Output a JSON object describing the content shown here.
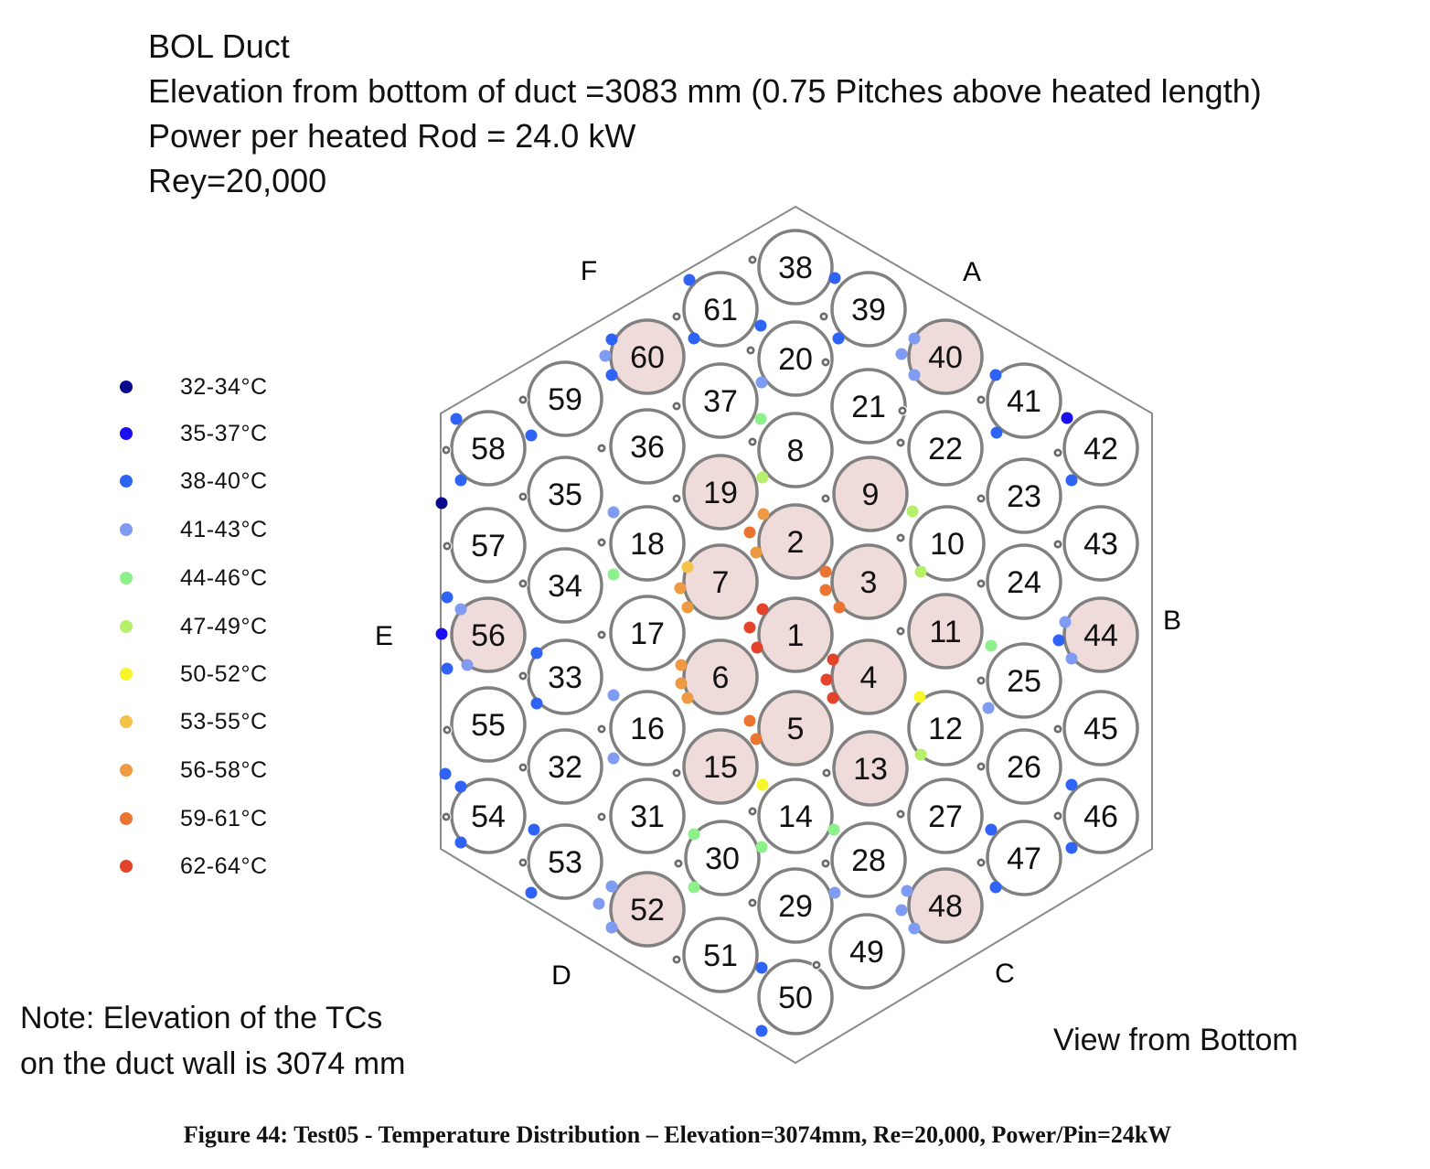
{
  "header": {
    "line1": "BOL Duct",
    "line2": "Elevation from bottom of duct =3083 mm (0.75 Pitches above heated length)",
    "line3": "Power per heated Rod = 24.0 kW",
    "line4": "Rey=20,000"
  },
  "legend": [
    {
      "label": "32-34°C",
      "color": "#0a0a8c"
    },
    {
      "label": "35-37°C",
      "color": "#1a0ff0"
    },
    {
      "label": "38-40°C",
      "color": "#2f63f5"
    },
    {
      "label": "41-43°C",
      "color": "#7f9cf2"
    },
    {
      "label": "44-46°C",
      "color": "#8ef08a"
    },
    {
      "label": "47-49°C",
      "color": "#b6f06a"
    },
    {
      "label": "50-52°C",
      "color": "#f6f62a"
    },
    {
      "label": "53-55°C",
      "color": "#f5c24a"
    },
    {
      "label": "56-58°C",
      "color": "#ef9a42"
    },
    {
      "label": "59-61°C",
      "color": "#ea7530"
    },
    {
      "label": "62-64°C",
      "color": "#e2432a"
    }
  ],
  "sides": {
    "A": "A",
    "B": "B",
    "C": "C",
    "D": "D",
    "E": "E",
    "F": "F"
  },
  "rods": {
    "heated": [
      1,
      2,
      3,
      4,
      5,
      6,
      7,
      9,
      11,
      13,
      15,
      19,
      40,
      44,
      48,
      52,
      56,
      60
    ],
    "heated_fill": "#efdcda",
    "unheated_fill": "#ffffff"
  },
  "note": {
    "line1": "Note: Elevation of the TCs",
    "line2": "on the duct wall is 3074 mm"
  },
  "view_label": "View from Bottom",
  "caption": "Figure 44: Test05 - Temperature Distribution – Elevation=3074mm, Re=20,000, Power/Pin=24kW"
}
